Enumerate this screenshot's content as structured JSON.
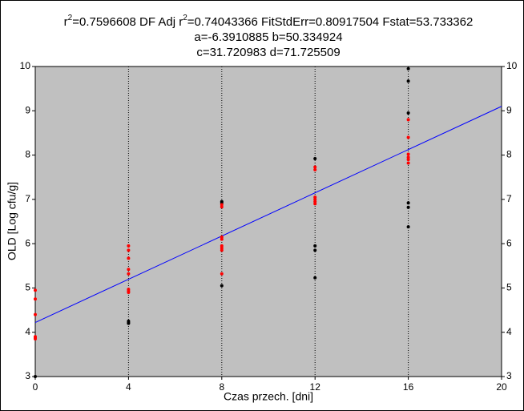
{
  "chart_data": {
    "type": "scatter",
    "title_lines": [
      [
        "r",
        "2",
        "=0.7596608  DF Adj r",
        "2",
        "=0.74043366  FitStdErr=0.80917504  Fstat=53.733362"
      ],
      "a=-6.3910885 b=50.334924",
      "c=31.720983 d=71.725509"
    ],
    "xlabel": "Czas przech. [dni]",
    "ylabel": "OLD [Log cfu/g]",
    "xlim": [
      0,
      20
    ],
    "xticks": [
      0,
      4,
      8,
      12,
      16,
      20
    ],
    "ylim": [
      3,
      10
    ],
    "yticks": [
      3,
      4,
      5,
      6,
      7,
      8,
      9,
      10
    ],
    "grid": "x",
    "background": "#c0c0c0",
    "series": [
      {
        "color": "#000000",
        "x": [
          0,
          4,
          4,
          4,
          8,
          8,
          8,
          12,
          12,
          12,
          12,
          16,
          16,
          16,
          16,
          16,
          16
        ],
        "values": [
          3.0,
          4.25,
          4.22,
          4.2,
          6.95,
          6.92,
          5.05,
          7.92,
          5.95,
          5.85,
          5.23,
          9.95,
          9.67,
          8.95,
          6.92,
          6.82,
          6.38
        ]
      },
      {
        "color": "#ff0000",
        "x": [
          0,
          0,
          0,
          0,
          0,
          0,
          4,
          4,
          4,
          4,
          4,
          4,
          4,
          4,
          8,
          8,
          8,
          8,
          8,
          8,
          8,
          8,
          12,
          12,
          12,
          12,
          12,
          12,
          16,
          16,
          16,
          16,
          16,
          16
        ],
        "values": [
          4.95,
          4.75,
          4.4,
          3.9,
          3.85,
          3.88,
          5.95,
          5.85,
          5.67,
          5.42,
          5.32,
          4.97,
          4.93,
          4.9,
          6.88,
          6.83,
          6.15,
          6.1,
          5.95,
          5.9,
          5.85,
          5.32,
          7.73,
          7.67,
          7.05,
          7.0,
          6.95,
          6.9,
          8.8,
          8.4,
          8.02,
          7.95,
          7.9,
          7.82
        ]
      }
    ],
    "fit": {
      "type": "line",
      "color": "#0000ff",
      "x": [
        0,
        20
      ],
      "values": [
        4.22,
        9.1
      ]
    }
  }
}
